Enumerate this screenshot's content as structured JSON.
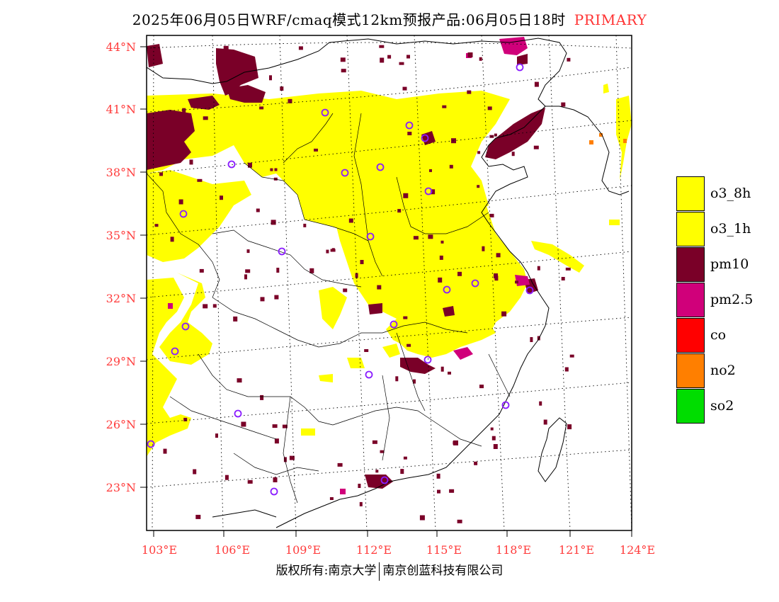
{
  "title": {
    "main": "2025年06月05日WRF/cmaq模式12km预报产品:06月05日18时",
    "tag": "PRIMARY"
  },
  "map": {
    "lat_labels": [
      "44°N",
      "41°N",
      "38°N",
      "35°N",
      "32°N",
      "29°N",
      "26°N",
      "23°N"
    ],
    "lon_labels": [
      "103°E",
      "106°E",
      "109°E",
      "112°E",
      "115°E",
      "118°E",
      "121°E",
      "124°E"
    ]
  },
  "legend": {
    "items": [
      {
        "label": "o3_8h",
        "color": "#ffff00"
      },
      {
        "label": "o3_1h",
        "color": "#ffff00"
      },
      {
        "label": "pm10",
        "color": "#7a0028"
      },
      {
        "label": "pm2.5",
        "color": "#d0007a"
      },
      {
        "label": "co",
        "color": "#ff0000"
      },
      {
        "label": "no2",
        "color": "#ff7f00"
      },
      {
        "label": "so2",
        "color": "#00dd00"
      }
    ]
  },
  "footer": {
    "left": "版权所有:南京大学",
    "right": "南京创蓝科技有限公司"
  },
  "colors": {
    "o3": "#ffff00",
    "pm10": "#7a0028",
    "pm25": "#d0007a",
    "no2": "#ff7f00",
    "station_ring": "#8a1cff",
    "axis_label": "#ff3b3b"
  }
}
